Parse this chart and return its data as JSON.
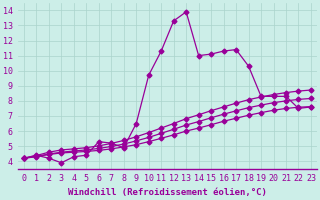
{
  "xlabel": "Windchill (Refroidissement éolien,°C)",
  "background_color": "#cceee8",
  "line_color": "#990099",
  "xlim": [
    -0.5,
    23.5
  ],
  "ylim": [
    3.5,
    14.5
  ],
  "xtick_labels": [
    "0",
    "1",
    "2",
    "3",
    "4",
    "5",
    "6",
    "7",
    "8",
    "9",
    "10",
    "11",
    "12",
    "13",
    "14",
    "15",
    "16",
    "17",
    "18",
    "19",
    "20",
    "21",
    "22",
    "23"
  ],
  "ytick_labels": [
    "4",
    "5",
    "6",
    "7",
    "8",
    "9",
    "10",
    "11",
    "12",
    "13",
    "14"
  ],
  "yticks": [
    4,
    5,
    6,
    7,
    8,
    9,
    10,
    11,
    12,
    13,
    14
  ],
  "jagged_x": [
    0,
    1,
    2,
    3,
    4,
    5,
    6,
    7,
    8,
    9,
    10,
    11,
    12,
    13,
    14,
    15,
    16,
    17,
    18,
    19,
    20,
    21,
    22,
    23
  ],
  "jagged_y": [
    4.2,
    4.4,
    4.2,
    3.9,
    4.3,
    4.4,
    5.3,
    5.2,
    4.9,
    6.5,
    9.7,
    11.3,
    13.3,
    13.9,
    11.0,
    11.1,
    11.3,
    11.4,
    10.3,
    8.3,
    8.3,
    8.3,
    7.5,
    7.6
  ],
  "smooth1_x": [
    0,
    1,
    2,
    3,
    4,
    5,
    6,
    7,
    8,
    9,
    10,
    11,
    12,
    13,
    14,
    15,
    16,
    17,
    18,
    19,
    20,
    21,
    22,
    23
  ],
  "smooth1_y": [
    4.2,
    4.3,
    4.45,
    4.55,
    4.6,
    4.65,
    4.72,
    4.82,
    4.95,
    5.1,
    5.3,
    5.52,
    5.75,
    6.0,
    6.2,
    6.42,
    6.65,
    6.85,
    7.05,
    7.22,
    7.38,
    7.5,
    7.58,
    7.62
  ],
  "smooth2_x": [
    0,
    1,
    2,
    3,
    4,
    5,
    6,
    7,
    8,
    9,
    10,
    11,
    12,
    13,
    14,
    15,
    16,
    17,
    18,
    19,
    20,
    21,
    22,
    23
  ],
  "smooth2_y": [
    4.2,
    4.32,
    4.48,
    4.6,
    4.68,
    4.75,
    4.85,
    4.98,
    5.14,
    5.35,
    5.58,
    5.85,
    6.12,
    6.4,
    6.63,
    6.88,
    7.12,
    7.34,
    7.55,
    7.72,
    7.88,
    8.0,
    8.1,
    8.16
  ],
  "smooth3_x": [
    0,
    1,
    2,
    3,
    4,
    5,
    6,
    7,
    8,
    9,
    10,
    11,
    12,
    13,
    14,
    15,
    16,
    17,
    18,
    19,
    20,
    21,
    22,
    23
  ],
  "smooth3_y": [
    4.2,
    4.38,
    4.6,
    4.75,
    4.82,
    4.9,
    5.02,
    5.18,
    5.38,
    5.62,
    5.9,
    6.2,
    6.5,
    6.82,
    7.08,
    7.35,
    7.6,
    7.85,
    8.08,
    8.26,
    8.42,
    8.55,
    8.65,
    8.72
  ],
  "marker": "D",
  "markersize": 2.5,
  "linewidth": 0.9,
  "grid_color": "#aad4cc",
  "xlabel_fontsize": 6.5,
  "tick_fontsize": 6
}
